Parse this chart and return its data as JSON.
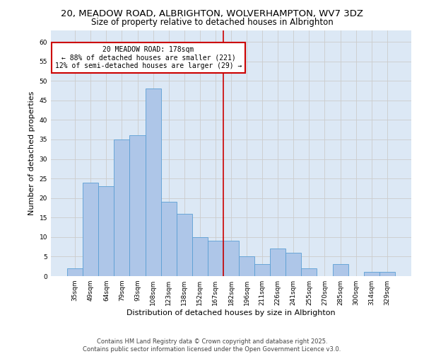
{
  "title_line1": "20, MEADOW ROAD, ALBRIGHTON, WOLVERHAMPTON, WV7 3DZ",
  "title_line2": "Size of property relative to detached houses in Albrighton",
  "xlabel": "Distribution of detached houses by size in Albrighton",
  "ylabel": "Number of detached properties",
  "categories": [
    "35sqm",
    "49sqm",
    "64sqm",
    "79sqm",
    "93sqm",
    "108sqm",
    "123sqm",
    "138sqm",
    "152sqm",
    "167sqm",
    "182sqm",
    "196sqm",
    "211sqm",
    "226sqm",
    "241sqm",
    "255sqm",
    "270sqm",
    "285sqm",
    "300sqm",
    "314sqm",
    "329sqm"
  ],
  "values": [
    2,
    24,
    23,
    35,
    36,
    48,
    19,
    16,
    10,
    9,
    9,
    5,
    3,
    7,
    6,
    2,
    0,
    3,
    0,
    1,
    1
  ],
  "bar_color": "#aec6e8",
  "bar_edge_color": "#5a9fd4",
  "vline_x": 9.5,
  "annotation_title": "20 MEADOW ROAD: 178sqm",
  "annotation_line2": "← 88% of detached houses are smaller (221)",
  "annotation_line3": "12% of semi-detached houses are larger (29) →",
  "annotation_box_color": "#ffffff",
  "annotation_box_edge": "#cc0000",
  "vline_color": "#cc0000",
  "ylim": [
    0,
    63
  ],
  "yticks": [
    0,
    5,
    10,
    15,
    20,
    25,
    30,
    35,
    40,
    45,
    50,
    55,
    60
  ],
  "grid_color": "#cccccc",
  "bg_color": "#dce8f5",
  "footer": "Contains HM Land Registry data © Crown copyright and database right 2025.\nContains public sector information licensed under the Open Government Licence v3.0.",
  "title_fontsize": 9.5,
  "subtitle_fontsize": 8.5,
  "axis_label_fontsize": 8,
  "tick_fontsize": 6.5,
  "annotation_fontsize": 7,
  "footer_fontsize": 6
}
